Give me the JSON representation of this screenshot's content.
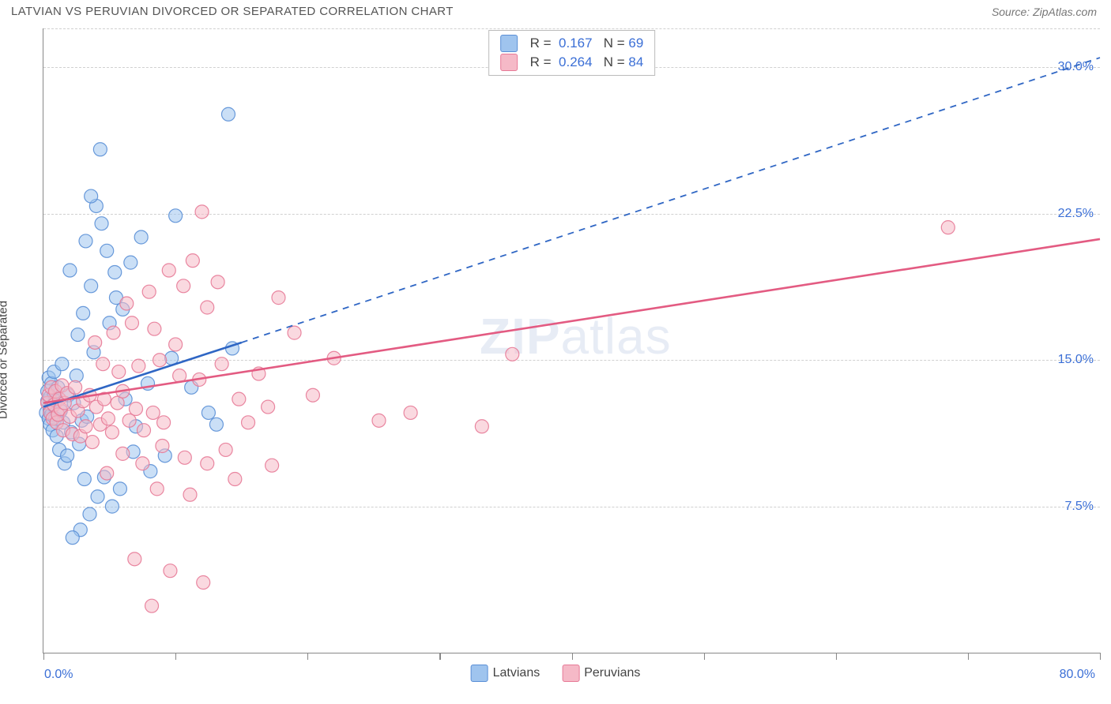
{
  "header": {
    "title": "LATVIAN VS PERUVIAN DIVORCED OR SEPARATED CORRELATION CHART",
    "source_label": "Source: ZipAtlas.com"
  },
  "chart": {
    "type": "scatter",
    "ylabel": "Divorced or Separated",
    "watermark": "ZIPatlas",
    "xlim": [
      0,
      80
    ],
    "ylim": [
      0,
      32
    ],
    "x_tick_step": 10,
    "y_gridlines": [
      7.5,
      15.0,
      22.5,
      30.0
    ],
    "y_grid_labels": [
      "7.5%",
      "15.0%",
      "22.5%",
      "30.0%"
    ],
    "x_min_label": "0.0%",
    "x_max_label": "80.0%",
    "background_color": "#ffffff",
    "grid_color": "#d0d0d0",
    "axis_color": "#888888",
    "text_color": "#444444",
    "value_color": "#3b6fd6",
    "marker_radius": 8.5,
    "marker_opacity": 0.55,
    "marker_stroke_opacity": 0.9,
    "marker_stroke_width": 1.2,
    "series": [
      {
        "name": "Latvians",
        "fill": "#9fc4ee",
        "stroke": "#5a8fd6",
        "line_color": "#2f66c4",
        "r_value": "0.167",
        "n_value": "69",
        "trend_solid": {
          "x1": 0.0,
          "y1": 12.6,
          "x2": 15.0,
          "y2": 15.9
        },
        "trend_dashed": {
          "x1": 15.0,
          "y1": 15.9,
          "x2": 80.0,
          "y2": 30.5
        },
        "points": [
          [
            0.2,
            12.3
          ],
          [
            0.3,
            12.9
          ],
          [
            0.3,
            13.4
          ],
          [
            0.4,
            12.0
          ],
          [
            0.4,
            14.1
          ],
          [
            0.5,
            11.7
          ],
          [
            0.5,
            13.1
          ],
          [
            0.5,
            12.5
          ],
          [
            0.6,
            13.8
          ],
          [
            0.6,
            12.2
          ],
          [
            0.7,
            12.7
          ],
          [
            0.7,
            11.4
          ],
          [
            0.8,
            13.3
          ],
          [
            0.8,
            14.4
          ],
          [
            0.9,
            12.0
          ],
          [
            0.9,
            12.9
          ],
          [
            1.0,
            11.1
          ],
          [
            1.1,
            13.6
          ],
          [
            1.2,
            10.4
          ],
          [
            1.3,
            12.4
          ],
          [
            1.4,
            14.8
          ],
          [
            1.5,
            11.8
          ],
          [
            1.6,
            9.7
          ],
          [
            1.8,
            10.1
          ],
          [
            1.9,
            13.2
          ],
          [
            2.1,
            11.3
          ],
          [
            2.3,
            12.8
          ],
          [
            2.5,
            14.2
          ],
          [
            2.7,
            10.7
          ],
          [
            2.9,
            11.9
          ],
          [
            3.1,
            8.9
          ],
          [
            3.3,
            12.1
          ],
          [
            3.8,
            15.4
          ],
          [
            2.6,
            16.3
          ],
          [
            3.0,
            17.4
          ],
          [
            3.6,
            18.8
          ],
          [
            2.0,
            19.6
          ],
          [
            4.8,
            20.6
          ],
          [
            3.2,
            21.1
          ],
          [
            4.4,
            22.0
          ],
          [
            4.0,
            22.9
          ],
          [
            3.6,
            23.4
          ],
          [
            5.5,
            18.2
          ],
          [
            5.0,
            16.9
          ],
          [
            5.4,
            19.5
          ],
          [
            6.0,
            17.6
          ],
          [
            6.6,
            20.0
          ],
          [
            4.3,
            25.8
          ],
          [
            7.4,
            21.3
          ],
          [
            10.0,
            22.4
          ],
          [
            6.2,
            13.0
          ],
          [
            7.0,
            11.6
          ],
          [
            7.9,
            13.8
          ],
          [
            5.8,
            8.4
          ],
          [
            4.6,
            9.0
          ],
          [
            3.5,
            7.1
          ],
          [
            2.8,
            6.3
          ],
          [
            5.2,
            7.5
          ],
          [
            2.2,
            5.9
          ],
          [
            14.0,
            27.6
          ],
          [
            14.3,
            15.6
          ],
          [
            9.7,
            15.1
          ],
          [
            11.2,
            13.6
          ],
          [
            12.5,
            12.3
          ],
          [
            13.1,
            11.7
          ],
          [
            9.2,
            10.1
          ],
          [
            8.1,
            9.3
          ],
          [
            6.8,
            10.3
          ],
          [
            4.1,
            8.0
          ]
        ]
      },
      {
        "name": "Peruvians",
        "fill": "#f5b9c7",
        "stroke": "#e77a97",
        "line_color": "#e35b82",
        "r_value": "0.264",
        "n_value": "84",
        "trend_solid": {
          "x1": 0.0,
          "y1": 12.8,
          "x2": 80.0,
          "y2": 21.2
        },
        "trend_dashed": null,
        "points": [
          [
            0.3,
            12.8
          ],
          [
            0.4,
            13.2
          ],
          [
            0.5,
            12.3
          ],
          [
            0.6,
            13.6
          ],
          [
            0.7,
            12.0
          ],
          [
            0.8,
            12.7
          ],
          [
            0.9,
            13.4
          ],
          [
            1.0,
            11.8
          ],
          [
            1.1,
            12.2
          ],
          [
            1.2,
            13.0
          ],
          [
            1.3,
            12.5
          ],
          [
            1.4,
            13.7
          ],
          [
            1.5,
            11.4
          ],
          [
            1.6,
            12.8
          ],
          [
            1.8,
            13.3
          ],
          [
            2.0,
            12.1
          ],
          [
            2.2,
            11.2
          ],
          [
            2.4,
            13.6
          ],
          [
            2.6,
            12.4
          ],
          [
            2.8,
            11.1
          ],
          [
            3.0,
            12.9
          ],
          [
            3.2,
            11.6
          ],
          [
            3.5,
            13.2
          ],
          [
            3.7,
            10.8
          ],
          [
            4.0,
            12.6
          ],
          [
            4.3,
            11.7
          ],
          [
            4.6,
            13.0
          ],
          [
            4.9,
            12.0
          ],
          [
            5.2,
            11.3
          ],
          [
            5.6,
            12.8
          ],
          [
            6.0,
            13.4
          ],
          [
            6.5,
            11.9
          ],
          [
            7.0,
            12.5
          ],
          [
            7.6,
            11.4
          ],
          [
            8.3,
            12.3
          ],
          [
            9.1,
            11.8
          ],
          [
            4.5,
            14.8
          ],
          [
            5.7,
            14.4
          ],
          [
            7.2,
            14.7
          ],
          [
            8.8,
            15.0
          ],
          [
            3.9,
            15.9
          ],
          [
            5.3,
            16.4
          ],
          [
            6.7,
            16.9
          ],
          [
            8.4,
            16.6
          ],
          [
            10.0,
            15.8
          ],
          [
            6.3,
            17.9
          ],
          [
            8.0,
            18.5
          ],
          [
            10.6,
            18.8
          ],
          [
            12.4,
            17.7
          ],
          [
            9.5,
            19.6
          ],
          [
            11.3,
            20.1
          ],
          [
            13.2,
            19.0
          ],
          [
            12.0,
            22.6
          ],
          [
            10.3,
            14.2
          ],
          [
            11.8,
            14.0
          ],
          [
            13.5,
            14.8
          ],
          [
            14.8,
            13.0
          ],
          [
            16.3,
            14.3
          ],
          [
            15.5,
            11.8
          ],
          [
            17.0,
            12.6
          ],
          [
            17.8,
            18.2
          ],
          [
            6.0,
            10.2
          ],
          [
            7.5,
            9.7
          ],
          [
            9.0,
            10.6
          ],
          [
            10.7,
            10.0
          ],
          [
            12.4,
            9.7
          ],
          [
            13.8,
            10.4
          ],
          [
            4.8,
            9.2
          ],
          [
            8.6,
            8.4
          ],
          [
            11.1,
            8.1
          ],
          [
            14.5,
            8.9
          ],
          [
            17.3,
            9.6
          ],
          [
            6.9,
            4.8
          ],
          [
            9.6,
            4.2
          ],
          [
            12.1,
            3.6
          ],
          [
            8.2,
            2.4
          ],
          [
            25.4,
            11.9
          ],
          [
            27.8,
            12.3
          ],
          [
            35.5,
            15.3
          ],
          [
            33.2,
            11.6
          ],
          [
            68.5,
            21.8
          ],
          [
            19.0,
            16.4
          ],
          [
            20.4,
            13.2
          ],
          [
            22.0,
            15.1
          ]
        ]
      }
    ],
    "bottom_legend": [
      {
        "label": "Latvians",
        "fill": "#9fc4ee",
        "stroke": "#5a8fd6"
      },
      {
        "label": "Peruvians",
        "fill": "#f5b9c7",
        "stroke": "#e77a97"
      }
    ]
  }
}
